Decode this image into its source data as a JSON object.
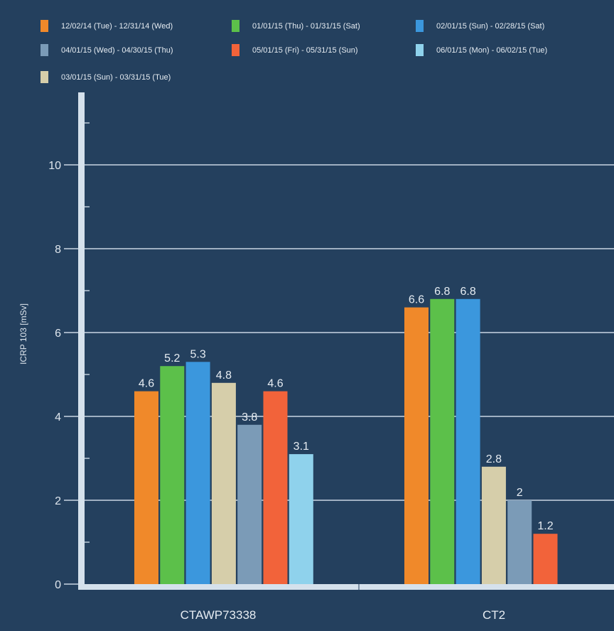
{
  "chart_data": {
    "type": "bar",
    "title": "",
    "xlabel": "",
    "ylabel": "ICRP 103   [mSv]",
    "ylim": [
      0,
      12
    ],
    "yticks": [
      0,
      2,
      4,
      6,
      8,
      10
    ],
    "grid": true,
    "legend_position": "top",
    "categories": [
      "CTAWP73338",
      "CT2"
    ],
    "series": [
      {
        "name": "12/02/14 (Tue) - 12/31/14 (Wed)",
        "color": "#f0892a",
        "values": [
          4.6,
          6.6
        ]
      },
      {
        "name": "01/01/15 (Thu) - 01/31/15 (Sat)",
        "color": "#5cc04a",
        "values": [
          5.2,
          6.8
        ]
      },
      {
        "name": "02/01/15 (Sun) - 02/28/15 (Sat)",
        "color": "#3b97dd",
        "values": [
          5.3,
          6.8
        ]
      },
      {
        "name": "03/01/15 (Sun) - 03/31/15 (Tue)",
        "color": "#d6ceaa",
        "values": [
          4.8,
          2.8
        ]
      },
      {
        "name": "04/01/15 (Wed) - 04/30/15 (Thu)",
        "color": "#7b9bb7",
        "values": [
          3.8,
          2
        ]
      },
      {
        "name": "05/01/15 (Fri) - 05/31/15 (Sun)",
        "color": "#f2633a",
        "values": [
          4.6,
          1.2
        ]
      },
      {
        "name": "06/01/15 (Mon) - 06/02/15 (Tue)",
        "color": "#8fd2ec",
        "values": [
          3.1,
          null
        ]
      }
    ],
    "data_labels": [
      [
        "4.6",
        "6.6"
      ],
      [
        "5.2",
        "6.8"
      ],
      [
        "5.3",
        "6.8"
      ],
      [
        "4.8",
        "2.8"
      ],
      [
        "3.8",
        "2"
      ],
      [
        "4.6",
        "1.2"
      ],
      [
        "3.1",
        ""
      ]
    ]
  }
}
